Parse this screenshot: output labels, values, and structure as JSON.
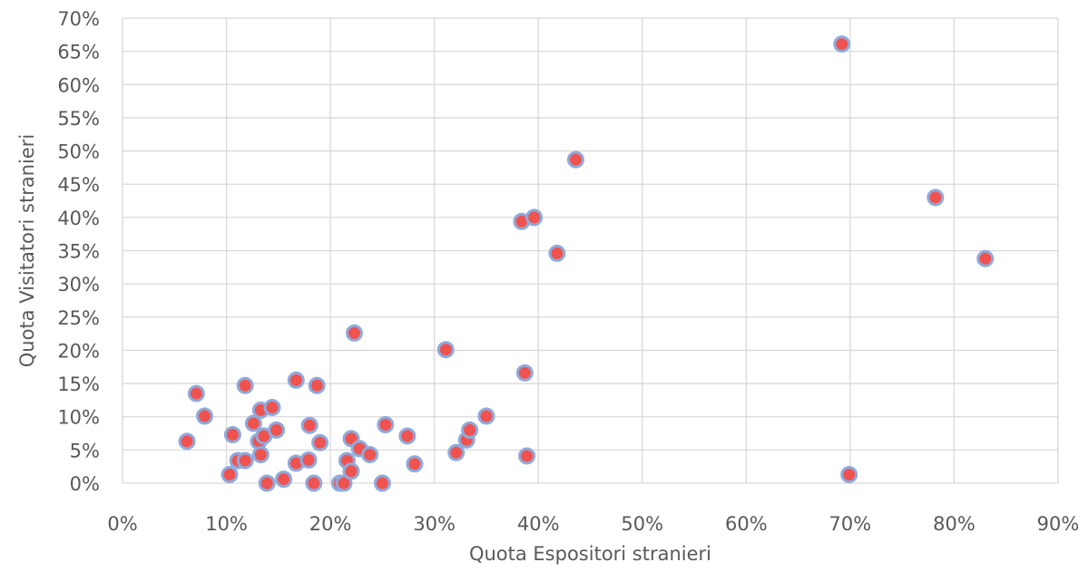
{
  "chart_data": {
    "type": "scatter",
    "title": "",
    "xlabel": "Quota Espositori stranieri",
    "ylabel": "Quota Visitatori stranieri",
    "xlim": [
      0,
      0.9
    ],
    "ylim": [
      0,
      0.7
    ],
    "x_ticks": [
      0,
      0.1,
      0.2,
      0.3,
      0.4,
      0.5,
      0.6,
      0.7,
      0.8,
      0.9
    ],
    "y_ticks": [
      0,
      0.05,
      0.1,
      0.15,
      0.2,
      0.25,
      0.3,
      0.35,
      0.4,
      0.45,
      0.5,
      0.55,
      0.6,
      0.65,
      0.7
    ],
    "x_tick_labels": [
      "0%",
      "10%",
      "20%",
      "30%",
      "40%",
      "50%",
      "60%",
      "70%",
      "80%",
      "90%"
    ],
    "y_tick_labels": [
      "0%",
      "5%",
      "10%",
      "15%",
      "20%",
      "25%",
      "30%",
      "35%",
      "40%",
      "45%",
      "50%",
      "55%",
      "60%",
      "65%",
      "70%"
    ],
    "grid": true,
    "legend": "none",
    "colors": {
      "marker_fill": "#ef5350",
      "marker_edge": "#8faadc",
      "grid": "#d9d9d9",
      "text": "#595959"
    },
    "series": [
      {
        "points": [
          {
            "x": 0.062,
            "y": 0.063
          },
          {
            "x": 0.071,
            "y": 0.135
          },
          {
            "x": 0.079,
            "y": 0.101
          },
          {
            "x": 0.103,
            "y": 0.013
          },
          {
            "x": 0.106,
            "y": 0.073
          },
          {
            "x": 0.111,
            "y": 0.034
          },
          {
            "x": 0.118,
            "y": 0.034
          },
          {
            "x": 0.118,
            "y": 0.147
          },
          {
            "x": 0.126,
            "y": 0.09
          },
          {
            "x": 0.131,
            "y": 0.063
          },
          {
            "x": 0.133,
            "y": 0.043
          },
          {
            "x": 0.133,
            "y": 0.11
          },
          {
            "x": 0.136,
            "y": 0.071
          },
          {
            "x": 0.139,
            "y": 0.0
          },
          {
            "x": 0.144,
            "y": 0.114
          },
          {
            "x": 0.148,
            "y": 0.08
          },
          {
            "x": 0.155,
            "y": 0.006
          },
          {
            "x": 0.167,
            "y": 0.03
          },
          {
            "x": 0.167,
            "y": 0.155
          },
          {
            "x": 0.179,
            "y": 0.035
          },
          {
            "x": 0.18,
            "y": 0.087
          },
          {
            "x": 0.184,
            "y": 0.0
          },
          {
            "x": 0.187,
            "y": 0.147
          },
          {
            "x": 0.19,
            "y": 0.061
          },
          {
            "x": 0.209,
            "y": 0.0
          },
          {
            "x": 0.213,
            "y": 0.0
          },
          {
            "x": 0.216,
            "y": 0.034
          },
          {
            "x": 0.22,
            "y": 0.067
          },
          {
            "x": 0.22,
            "y": 0.018
          },
          {
            "x": 0.223,
            "y": 0.226
          },
          {
            "x": 0.228,
            "y": 0.052
          },
          {
            "x": 0.238,
            "y": 0.043
          },
          {
            "x": 0.25,
            "y": 0.0
          },
          {
            "x": 0.253,
            "y": 0.088
          },
          {
            "x": 0.274,
            "y": 0.071
          },
          {
            "x": 0.281,
            "y": 0.029
          },
          {
            "x": 0.311,
            "y": 0.201
          },
          {
            "x": 0.321,
            "y": 0.046
          },
          {
            "x": 0.331,
            "y": 0.065
          },
          {
            "x": 0.334,
            "y": 0.08
          },
          {
            "x": 0.35,
            "y": 0.101
          },
          {
            "x": 0.384,
            "y": 0.394
          },
          {
            "x": 0.387,
            "y": 0.166
          },
          {
            "x": 0.389,
            "y": 0.041
          },
          {
            "x": 0.396,
            "y": 0.4
          },
          {
            "x": 0.418,
            "y": 0.346
          },
          {
            "x": 0.436,
            "y": 0.487
          },
          {
            "x": 0.692,
            "y": 0.661
          },
          {
            "x": 0.699,
            "y": 0.013
          },
          {
            "x": 0.782,
            "y": 0.43
          },
          {
            "x": 0.83,
            "y": 0.338
          }
        ]
      }
    ]
  }
}
